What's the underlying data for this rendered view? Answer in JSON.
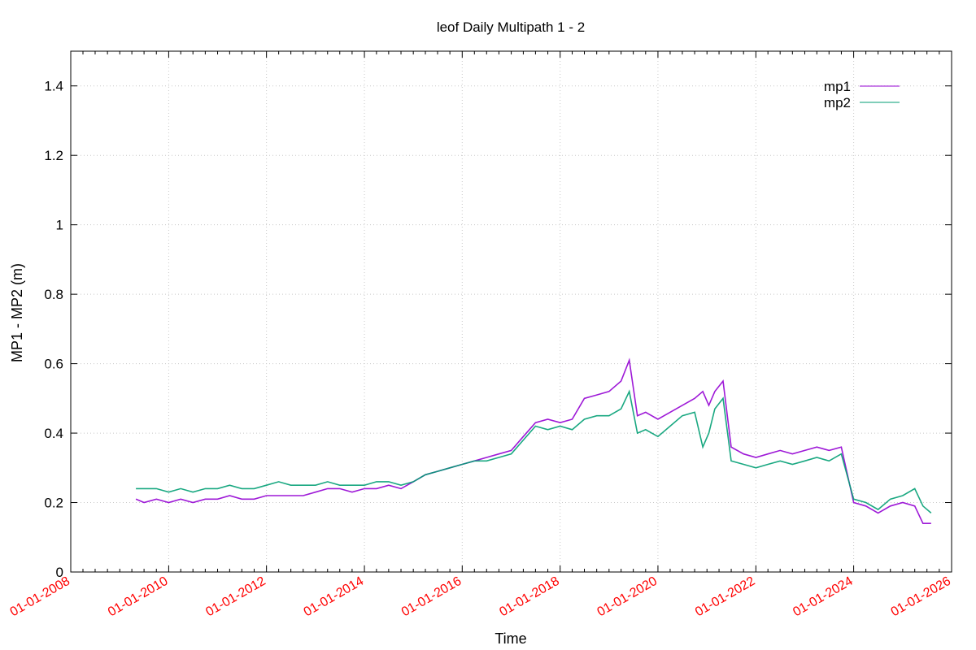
{
  "chart_data": {
    "type": "line",
    "title": "leof Daily Multipath 1 - 2",
    "xlabel": "Time",
    "ylabel": "MP1 - MP2 (m)",
    "xlim": [
      "2008-01-01",
      "2026-01-01"
    ],
    "ylim": [
      0,
      1.5
    ],
    "yticks": [
      0,
      0.2,
      0.4,
      0.6,
      0.8,
      1,
      1.2,
      1.4
    ],
    "ytick_labels": [
      "0",
      "0.2",
      "0.4",
      "0.6",
      "0.8",
      "1",
      "1.2",
      "1.4"
    ],
    "xticks": [
      "2008-01-01",
      "2010-01-01",
      "2012-01-01",
      "2014-01-01",
      "2016-01-01",
      "2018-01-01",
      "2020-01-01",
      "2022-01-01",
      "2024-01-01",
      "2026-01-01"
    ],
    "xtick_labels": [
      "01-01-2008",
      "01-01-2010",
      "01-01-2012",
      "01-01-2014",
      "01-01-2016",
      "01-01-2018",
      "01-01-2020",
      "01-01-2022",
      "01-01-2024",
      "01-01-2026"
    ],
    "xtick_label_color": "#ff0000",
    "grid": true,
    "legend_position": "top-right",
    "series": [
      {
        "name": "mp1",
        "color": "#9400d3",
        "x": [
          "2009-05-01",
          "2009-07-01",
          "2009-10-01",
          "2010-01-01",
          "2010-04-01",
          "2010-07-01",
          "2010-10-01",
          "2011-01-01",
          "2011-04-01",
          "2011-07-01",
          "2011-10-01",
          "2012-01-01",
          "2012-04-01",
          "2012-07-01",
          "2012-10-01",
          "2013-01-01",
          "2013-04-01",
          "2013-07-01",
          "2013-10-01",
          "2014-01-01",
          "2014-04-01",
          "2014-07-01",
          "2014-10-01",
          "2015-01-01",
          "2015-04-01",
          "2015-07-01",
          "2015-10-01",
          "2016-01-01",
          "2016-04-01",
          "2016-07-01",
          "2016-10-01",
          "2017-01-01",
          "2017-04-01",
          "2017-07-01",
          "2017-10-01",
          "2018-01-01",
          "2018-04-01",
          "2018-07-01",
          "2018-10-01",
          "2019-01-01",
          "2019-04-01",
          "2019-06-01",
          "2019-08-01",
          "2019-10-01",
          "2020-01-01",
          "2020-04-01",
          "2020-07-01",
          "2020-10-01",
          "2020-12-01",
          "2021-01-15",
          "2021-03-01",
          "2021-05-01",
          "2021-07-01",
          "2021-10-01",
          "2022-01-01",
          "2022-04-01",
          "2022-07-01",
          "2022-10-01",
          "2023-01-01",
          "2023-04-01",
          "2023-07-01",
          "2023-10-01",
          "2024-01-01",
          "2024-04-01",
          "2024-07-01",
          "2024-10-01",
          "2025-01-01",
          "2025-04-01",
          "2025-06-01",
          "2025-08-01"
        ],
        "values": [
          0.21,
          0.2,
          0.21,
          0.2,
          0.21,
          0.2,
          0.21,
          0.21,
          0.22,
          0.21,
          0.21,
          0.22,
          0.22,
          0.22,
          0.22,
          0.23,
          0.24,
          0.24,
          0.23,
          0.24,
          0.24,
          0.25,
          0.24,
          0.26,
          0.28,
          0.29,
          0.3,
          0.31,
          0.32,
          0.33,
          0.34,
          0.35,
          0.39,
          0.43,
          0.44,
          0.43,
          0.44,
          0.5,
          0.51,
          0.52,
          0.55,
          0.61,
          0.45,
          0.46,
          0.44,
          0.46,
          0.48,
          0.5,
          0.52,
          0.48,
          0.52,
          0.55,
          0.36,
          0.34,
          0.33,
          0.34,
          0.35,
          0.34,
          0.35,
          0.36,
          0.35,
          0.36,
          0.2,
          0.19,
          0.17,
          0.19,
          0.2,
          0.19,
          0.14,
          0.14
        ]
      },
      {
        "name": "mp2",
        "color": "#009e73",
        "x": [
          "2009-05-01",
          "2009-07-01",
          "2009-10-01",
          "2010-01-01",
          "2010-04-01",
          "2010-07-01",
          "2010-10-01",
          "2011-01-01",
          "2011-04-01",
          "2011-07-01",
          "2011-10-01",
          "2012-01-01",
          "2012-04-01",
          "2012-07-01",
          "2012-10-01",
          "2013-01-01",
          "2013-04-01",
          "2013-07-01",
          "2013-10-01",
          "2014-01-01",
          "2014-04-01",
          "2014-07-01",
          "2014-10-01",
          "2015-01-01",
          "2015-04-01",
          "2015-07-01",
          "2015-10-01",
          "2016-01-01",
          "2016-04-01",
          "2016-07-01",
          "2016-10-01",
          "2017-01-01",
          "2017-04-01",
          "2017-07-01",
          "2017-10-01",
          "2018-01-01",
          "2018-04-01",
          "2018-07-01",
          "2018-10-01",
          "2019-01-01",
          "2019-04-01",
          "2019-06-01",
          "2019-08-01",
          "2019-10-01",
          "2020-01-01",
          "2020-04-01",
          "2020-07-01",
          "2020-10-01",
          "2020-12-01",
          "2021-01-15",
          "2021-03-01",
          "2021-05-01",
          "2021-07-01",
          "2021-10-01",
          "2022-01-01",
          "2022-04-01",
          "2022-07-01",
          "2022-10-01",
          "2023-01-01",
          "2023-04-01",
          "2023-07-01",
          "2023-10-01",
          "2024-01-01",
          "2024-04-01",
          "2024-07-01",
          "2024-10-01",
          "2025-01-01",
          "2025-04-01",
          "2025-06-01",
          "2025-08-01"
        ],
        "values": [
          0.24,
          0.24,
          0.24,
          0.23,
          0.24,
          0.23,
          0.24,
          0.24,
          0.25,
          0.24,
          0.24,
          0.25,
          0.26,
          0.25,
          0.25,
          0.25,
          0.26,
          0.25,
          0.25,
          0.25,
          0.26,
          0.26,
          0.25,
          0.26,
          0.28,
          0.29,
          0.3,
          0.31,
          0.32,
          0.32,
          0.33,
          0.34,
          0.38,
          0.42,
          0.41,
          0.42,
          0.41,
          0.44,
          0.45,
          0.45,
          0.47,
          0.52,
          0.4,
          0.41,
          0.39,
          0.42,
          0.45,
          0.46,
          0.36,
          0.4,
          0.47,
          0.5,
          0.32,
          0.31,
          0.3,
          0.31,
          0.32,
          0.31,
          0.32,
          0.33,
          0.32,
          0.34,
          0.21,
          0.2,
          0.18,
          0.21,
          0.22,
          0.24,
          0.19,
          0.17
        ]
      }
    ]
  }
}
